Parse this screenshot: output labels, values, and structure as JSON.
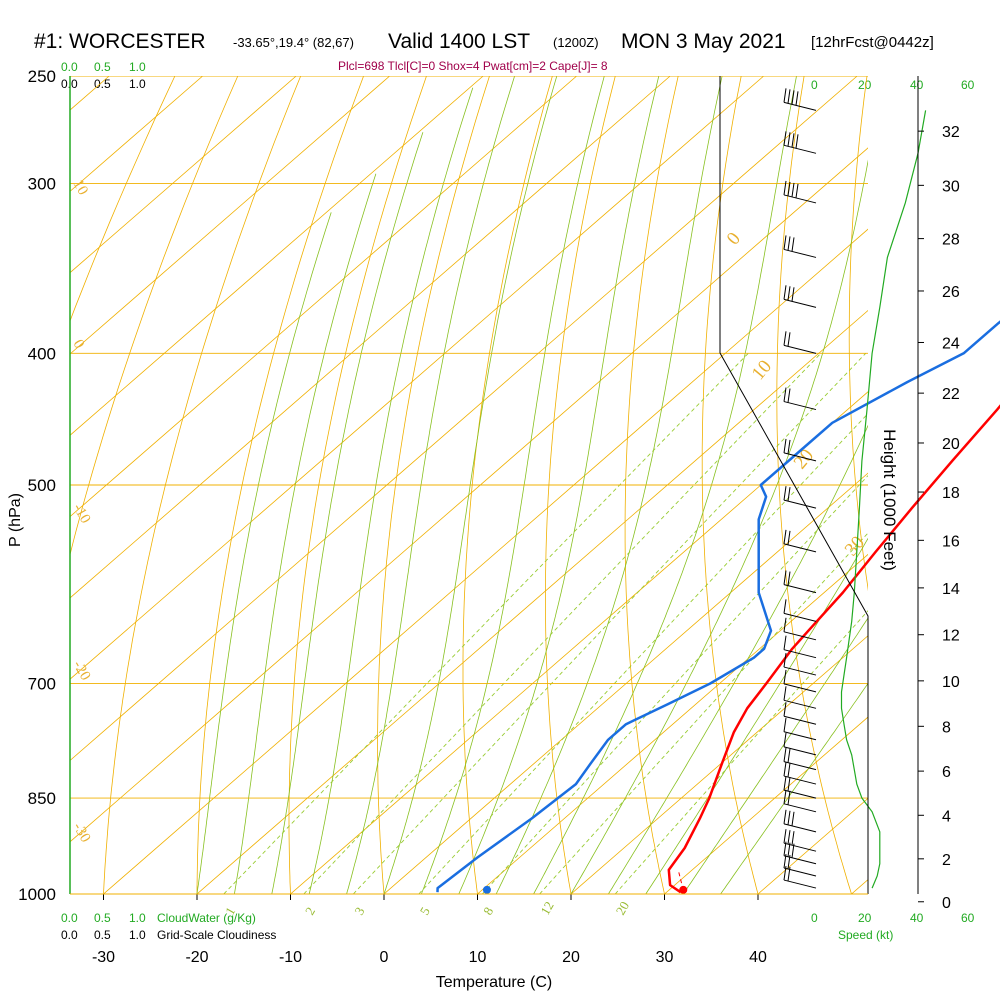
{
  "header": {
    "station": "#1: WORCESTER",
    "coords": "-33.65°,19.4° (82,67)",
    "valid": "Valid 1400 LST",
    "utc": "(1200Z)",
    "date": "MON 3 May 2021",
    "forecast": "[12hrFcst@0442z]",
    "params": "Plcl=698 Tlcl[C]=0 Shox=4 Pwat[cm]=2 Cape[J]= 8"
  },
  "axes": {
    "xlabel": "Temperature (C)",
    "ylabel": "P (hPa)",
    "height_label": "Height (1000 Feet)",
    "speed_label": "Speed (kt)",
    "cloudwater_label": "CloudWater (g/Kg)",
    "cloudiness_label": "Grid-Scale Cloudiness"
  },
  "scales": {
    "cloud_ticks": [
      "0.0",
      "0.5",
      "1.0"
    ],
    "speed_ticks": [
      "0",
      "20",
      "40",
      "60"
    ]
  },
  "colors": {
    "temperature": "#ff0000",
    "dewpoint": "#1a6ee0",
    "isotherm": "#f0b000",
    "dry_adiabat": "#f0b000",
    "moist_adiabat": "#88c020",
    "mixing_ratio": "#99cc33",
    "wind_speed": "#22aa22",
    "cloud": "#22aa22"
  },
  "chart_data": {
    "type": "line",
    "x_axis": {
      "label": "Temperature (C)",
      "range": [
        -34,
        44
      ],
      "ticks": [
        -30,
        -20,
        -10,
        0,
        10,
        20,
        30,
        40
      ]
    },
    "y_axis": {
      "label": "P (hPa)",
      "scale": "log-pressure",
      "range": [
        1000,
        250
      ],
      "ticks": [
        250,
        300,
        400,
        500,
        700,
        850,
        1000
      ]
    },
    "height_axis": {
      "label": "Height (1000 Feet)",
      "ticks": [
        0,
        2,
        4,
        6,
        8,
        10,
        12,
        14,
        16,
        18,
        20,
        22,
        24,
        26,
        28,
        30,
        32
      ]
    },
    "isotherm_labels": [
      "0",
      "10",
      "20",
      "30"
    ],
    "dry_adiabat_labels": [
      "10",
      "0",
      "-10",
      "-20",
      "-30"
    ],
    "mixing_ratio_labels": [
      "1",
      "2",
      "3",
      "5",
      "8",
      "12",
      "20"
    ],
    "series": [
      {
        "kind": "temperature",
        "points": [
          [
            997,
            31.5
          ],
          [
            985,
            29.5
          ],
          [
            960,
            27.5
          ],
          [
            925,
            26.5
          ],
          [
            880,
            24.5
          ],
          [
            850,
            23.0
          ],
          [
            800,
            20.0
          ],
          [
            760,
            17.5
          ],
          [
            730,
            16.0
          ],
          [
            700,
            15.0
          ],
          [
            660,
            13.5
          ],
          [
            640,
            13.0
          ],
          [
            600,
            12.0
          ],
          [
            560,
            10.5
          ],
          [
            520,
            9.0
          ],
          [
            480,
            7.5
          ],
          [
            440,
            6.0
          ],
          [
            400,
            4.0
          ],
          [
            360,
            2.0
          ],
          [
            330,
            0.5
          ],
          [
            300,
            -1.0
          ],
          [
            280,
            -1.5
          ],
          [
            265,
            -1.8
          ]
        ]
      },
      {
        "kind": "dewpoint",
        "points": [
          [
            997,
            5.5
          ],
          [
            990,
            5.0
          ],
          [
            940,
            5.5
          ],
          [
            880,
            6.5
          ],
          [
            830,
            7.0
          ],
          [
            800,
            6.0
          ],
          [
            770,
            5.0
          ],
          [
            750,
            5.0
          ],
          [
            725,
            7.0
          ],
          [
            700,
            9.0
          ],
          [
            670,
            10.5
          ],
          [
            660,
            10.5
          ],
          [
            640,
            9.0
          ],
          [
            600,
            3.0
          ],
          [
            560,
            -2.0
          ],
          [
            530,
            -6.0
          ],
          [
            510,
            -8.0
          ],
          [
            500,
            -10.0
          ],
          [
            470,
            -10.0
          ],
          [
            450,
            -10.0
          ],
          [
            420,
            -7.0
          ],
          [
            400,
            -4.5
          ],
          [
            380,
            -4.5
          ],
          [
            350,
            -4.0
          ],
          [
            320,
            -6.0
          ],
          [
            300,
            -7.0
          ],
          [
            285,
            -9.0
          ],
          [
            265,
            -13.0
          ]
        ]
      }
    ],
    "surface_points": [
      {
        "kind": "temperature",
        "p": 993,
        "t": 31.5
      },
      {
        "kind": "dewpoint",
        "p": 993,
        "t": 10.5
      }
    ],
    "wind": [
      {
        "p": 990,
        "kt": 22
      },
      {
        "p": 970,
        "kt": 24
      },
      {
        "p": 950,
        "kt": 25
      },
      {
        "p": 930,
        "kt": 25
      },
      {
        "p": 900,
        "kt": 25
      },
      {
        "p": 870,
        "kt": 22
      },
      {
        "p": 850,
        "kt": 18
      },
      {
        "p": 830,
        "kt": 16
      },
      {
        "p": 810,
        "kt": 15
      },
      {
        "p": 790,
        "kt": 14
      },
      {
        "p": 770,
        "kt": 12
      },
      {
        "p": 750,
        "kt": 11
      },
      {
        "p": 730,
        "kt": 10
      },
      {
        "p": 710,
        "kt": 10
      },
      {
        "p": 690,
        "kt": 11
      },
      {
        "p": 670,
        "kt": 12
      },
      {
        "p": 650,
        "kt": 13
      },
      {
        "p": 630,
        "kt": 14
      },
      {
        "p": 600,
        "kt": 15
      },
      {
        "p": 560,
        "kt": 16
      },
      {
        "p": 520,
        "kt": 17
      },
      {
        "p": 480,
        "kt": 18
      },
      {
        "p": 440,
        "kt": 20
      },
      {
        "p": 400,
        "kt": 22
      },
      {
        "p": 370,
        "kt": 25
      },
      {
        "p": 340,
        "kt": 28
      },
      {
        "p": 310,
        "kt": 35
      },
      {
        "p": 285,
        "kt": 40
      },
      {
        "p": 265,
        "kt": 43
      }
    ]
  }
}
